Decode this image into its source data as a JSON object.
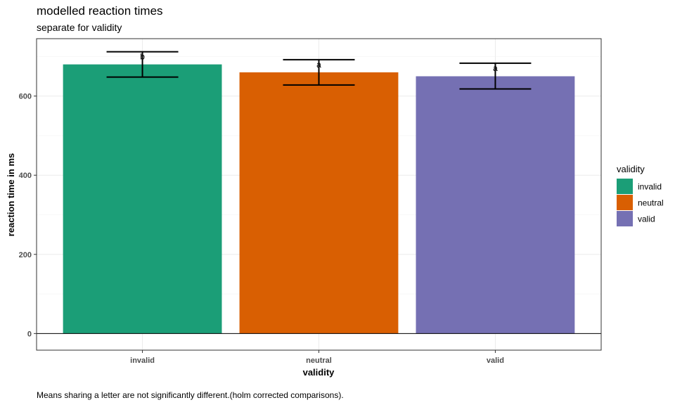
{
  "title": "modelled reaction times",
  "subtitle": "separate for validity",
  "caption": "Means sharing a letter are not significantly different.(holm corrected comparisons).",
  "chart_data": {
    "type": "bar",
    "xlabel": "validity",
    "ylabel": "reaction time in ms",
    "ylim": [
      -42,
      745
    ],
    "yticks": [
      0,
      200,
      400,
      600
    ],
    "grid": true,
    "legend": {
      "title": "validity",
      "placement": "right",
      "entries": [
        "invalid",
        "neutral",
        "valid"
      ]
    },
    "categories": [
      "invalid",
      "neutral",
      "valid"
    ],
    "values": [
      680,
      660,
      650
    ],
    "error_low": [
      648,
      628,
      618
    ],
    "error_high": [
      712,
      692,
      683
    ],
    "letters": [
      "b",
      "a",
      "a"
    ],
    "colors": [
      "#1b9e77",
      "#d95f02",
      "#7570b3"
    ]
  }
}
